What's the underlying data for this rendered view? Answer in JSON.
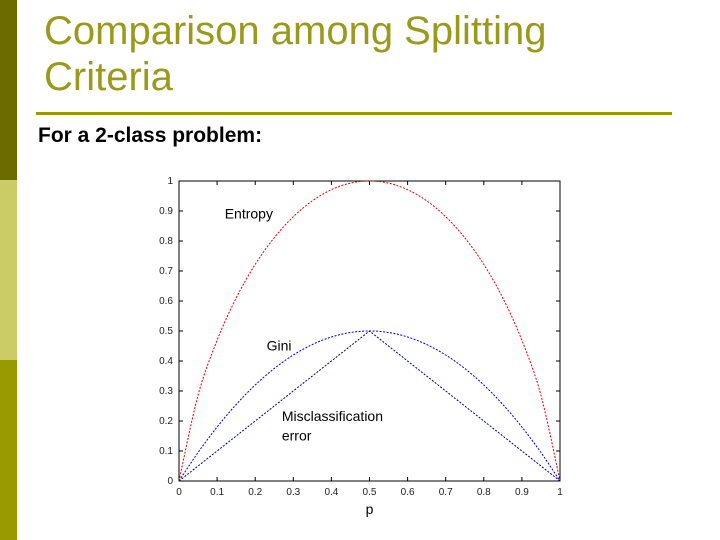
{
  "slide": {
    "title": "Comparison among Splitting Criteria",
    "subtitle": "For a 2-class problem:",
    "colors": {
      "accent": "#999900",
      "title": "#9a9a1a"
    }
  },
  "chart_data": {
    "type": "line",
    "xlabel": "p",
    "ylabel": "",
    "xlim": [
      0,
      1
    ],
    "ylim": [
      0,
      1
    ],
    "xticks": [
      "0",
      "0.1",
      "0.2",
      "0.3",
      "0.4",
      "0.5",
      "0.6",
      "0.7",
      "0.8",
      "0.9",
      "1"
    ],
    "yticks": [
      "0",
      "0.1",
      "0.2",
      "0.3",
      "0.4",
      "0.5",
      "0.6",
      "0.7",
      "0.8",
      "0.9",
      "1"
    ],
    "grid": false,
    "series": [
      {
        "name": "Entropy",
        "color": "#e00000",
        "x": [
          0,
          0.05,
          0.1,
          0.15,
          0.2,
          0.25,
          0.3,
          0.35,
          0.4,
          0.45,
          0.5,
          0.55,
          0.6,
          0.65,
          0.7,
          0.75,
          0.8,
          0.85,
          0.9,
          0.95,
          1
        ],
        "values": [
          0,
          0.286,
          0.469,
          0.61,
          0.722,
          0.811,
          0.881,
          0.934,
          0.971,
          0.993,
          1,
          0.993,
          0.971,
          0.934,
          0.881,
          0.811,
          0.722,
          0.61,
          0.469,
          0.286,
          0
        ]
      },
      {
        "name": "Gini",
        "color": "#0000cc",
        "x": [
          0,
          0.05,
          0.1,
          0.15,
          0.2,
          0.25,
          0.3,
          0.35,
          0.4,
          0.45,
          0.5,
          0.55,
          0.6,
          0.65,
          0.7,
          0.75,
          0.8,
          0.85,
          0.9,
          0.95,
          1
        ],
        "values": [
          0,
          0.095,
          0.18,
          0.255,
          0.32,
          0.375,
          0.42,
          0.455,
          0.48,
          0.495,
          0.5,
          0.495,
          0.48,
          0.455,
          0.42,
          0.375,
          0.32,
          0.255,
          0.18,
          0.095,
          0
        ]
      },
      {
        "name": "Misclassification error",
        "color": "#000080",
        "x": [
          0,
          0.5,
          1
        ],
        "values": [
          0,
          0.5,
          0
        ]
      }
    ],
    "annotations": [
      {
        "text": "Entropy",
        "x": 0.12,
        "y": 0.875
      },
      {
        "text": "Gini",
        "x": 0.23,
        "y": 0.435
      },
      {
        "text": "Misclassification",
        "x": 0.27,
        "y": 0.2
      },
      {
        "text": "error",
        "x": 0.27,
        "y": 0.135
      }
    ]
  }
}
